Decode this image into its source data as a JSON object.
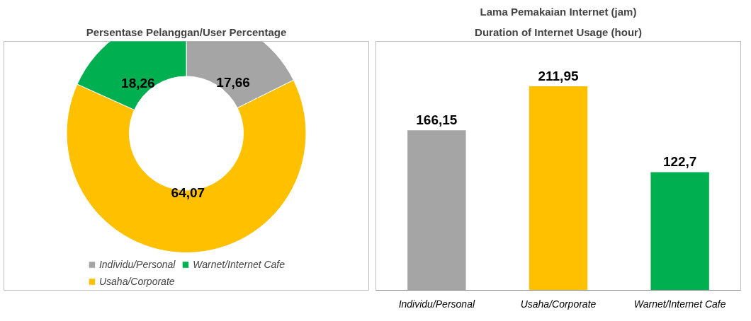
{
  "chart_data": [
    {
      "type": "donut",
      "title": "Persentase Pelanggan/User Percentage",
      "categories": [
        "Individu/Personal",
        "Usaha/Corporate",
        "Warnet/Internet Cafe"
      ],
      "values": [
        17.66,
        64.07,
        18.26
      ],
      "value_labels": [
        "17,66",
        "64,07",
        "18,26"
      ],
      "colors": [
        "#a5a5a5",
        "#ffc000",
        "#00b050"
      ],
      "legend": "bottom"
    },
    {
      "type": "bar",
      "title": "Lama Pemakaian Internet (jam)",
      "subtitle": "Duration of Internet Usage (hour)",
      "categories": [
        "Individu/Personal",
        "Usaha/Corporate",
        "Warnet/Internet Cafe"
      ],
      "values": [
        166.15,
        211.95,
        122.7
      ],
      "value_labels": [
        "166,15",
        "211,95",
        "122,7"
      ],
      "colors": [
        "#a5a5a5",
        "#ffc000",
        "#00b050"
      ]
    }
  ]
}
